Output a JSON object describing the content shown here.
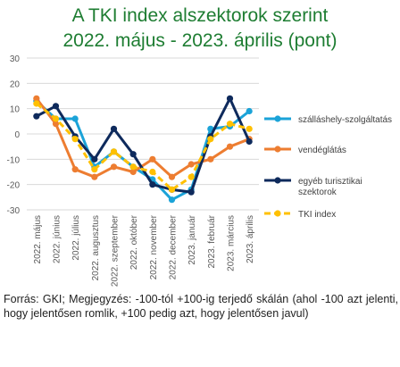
{
  "chart_data": {
    "type": "line",
    "title": "A TKI index alszektorok szerint",
    "subtitle": "2022. május - 2023. április (pont)",
    "categories": [
      "2022. május",
      "2022. június",
      "2022. július",
      "2022. augusztus",
      "2022. szeptember",
      "2022. október",
      "2022. november",
      "2022. december",
      "2023. január",
      "2023. február",
      "2023. március",
      "2023. április"
    ],
    "ylim": [
      -30,
      30
    ],
    "yticks": [
      30,
      20,
      10,
      0,
      -10,
      -20,
      -30
    ],
    "grid": true,
    "legend_position": "right",
    "series": [
      {
        "name": "szálláshely-szolgáltatás",
        "color": "#1ba3d8",
        "dashed": false,
        "values": [
          13,
          6,
          6,
          -13,
          -7,
          -13,
          -18,
          -26,
          -22,
          2,
          3,
          9
        ]
      },
      {
        "name": "vendéglátás",
        "color": "#ed7d31",
        "dashed": false,
        "values": [
          14,
          4,
          -14,
          -17,
          -13,
          -15,
          -10,
          -17,
          -12,
          -10,
          -5,
          -2
        ]
      },
      {
        "name": "egyéb turisztikai szektorok",
        "color": "#0e2a5c",
        "dashed": false,
        "values": [
          7,
          11,
          -1,
          -10,
          2,
          -8,
          -20,
          -22,
          -23,
          -1,
          14,
          -3
        ]
      },
      {
        "name": "TKI index",
        "color": "#ffc000",
        "dashed": true,
        "values": [
          12,
          6,
          -2,
          -14,
          -7,
          -13,
          -15,
          -22,
          -17,
          -2,
          4,
          2
        ]
      }
    ]
  },
  "footnote": "Forrás: GKI; Megjegyzés: -100-tól +100-ig terjedő skálán (ahol -100 azt jelenti, hogy jelentősen romlik, +100 pedig azt, hogy jelentősen javul)"
}
